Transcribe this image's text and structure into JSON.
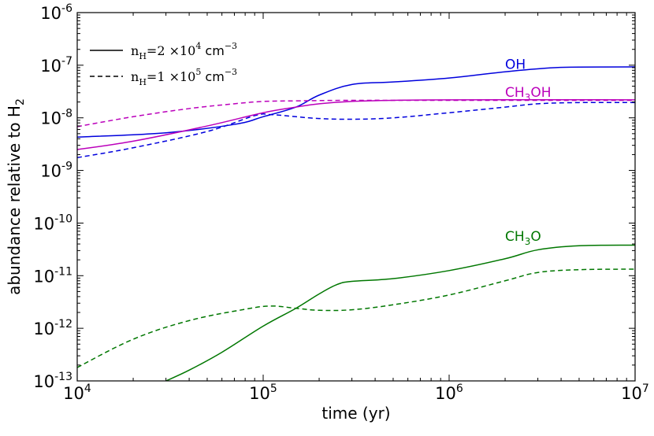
{
  "chart_data": {
    "type": "line",
    "xlabel": "time (yr)",
    "ylabel": "abundance relative to H",
    "ylabel_sub": "2",
    "x_scale": "log",
    "y_scale": "log",
    "xlim": [
      10000,
      10000000
    ],
    "ylim": [
      1e-13,
      1e-06
    ],
    "x_ticks": [
      {
        "value": 10000,
        "base": "10",
        "exp": "4"
      },
      {
        "value": 100000,
        "base": "10",
        "exp": "5"
      },
      {
        "value": 1000000,
        "base": "10",
        "exp": "6"
      },
      {
        "value": 10000000,
        "base": "10",
        "exp": "7"
      }
    ],
    "y_ticks": [
      {
        "value": 1e-13,
        "base": "10",
        "exp": "-13"
      },
      {
        "value": 1e-12,
        "base": "10",
        "exp": "-12"
      },
      {
        "value": 1e-11,
        "base": "10",
        "exp": "-11"
      },
      {
        "value": 1e-10,
        "base": "10",
        "exp": "-10"
      },
      {
        "value": 1e-09,
        "base": "10",
        "exp": "-9"
      },
      {
        "value": 1e-08,
        "base": "10",
        "exp": "-8"
      },
      {
        "value": 1e-07,
        "base": "10",
        "exp": "-7"
      },
      {
        "value": 1e-06,
        "base": "10",
        "exp": "-6"
      }
    ],
    "grid": false,
    "legend_position": "top-left",
    "legend": [
      {
        "style": "solid",
        "n": "n",
        "sub": "H",
        "eq": "=2 ×10",
        "exp": "4",
        "unit": "cm",
        "unit_exp": "−3"
      },
      {
        "style": "dashed",
        "n": "n",
        "sub": "H",
        "eq": "=1 ×10",
        "exp": "5",
        "unit": "cm",
        "unit_exp": "−3"
      }
    ],
    "species": [
      {
        "label": "OH",
        "label_parts": [
          {
            "t": "OH",
            "sub": false
          }
        ],
        "color": "#0000dd",
        "label_at": {
          "x": 2000000,
          "y": 8.5e-08
        }
      },
      {
        "label": "CH3OH",
        "label_parts": [
          {
            "t": "CH",
            "sub": false
          },
          {
            "t": "3",
            "sub": true
          },
          {
            "t": "OH",
            "sub": false
          }
        ],
        "color": "#bb00bb",
        "label_at": {
          "x": 2000000,
          "y": 2.5e-08
        }
      },
      {
        "label": "CH3O",
        "label_parts": [
          {
            "t": "CH",
            "sub": false
          },
          {
            "t": "3",
            "sub": true
          },
          {
            "t": "O",
            "sub": false
          }
        ],
        "color": "#007700",
        "label_at": {
          "x": 2000000,
          "y": 4.6e-11
        }
      }
    ],
    "series": [
      {
        "species": "OH",
        "style": "solid",
        "color": "#0000dd",
        "points": [
          [
            10000,
            4.3e-09
          ],
          [
            30000,
            5.2e-09
          ],
          [
            70000,
            7.5e-09
          ],
          [
            100000,
            1.05e-08
          ],
          [
            150000,
            1.6e-08
          ],
          [
            200000,
            2.7e-08
          ],
          [
            300000,
            4.3e-08
          ],
          [
            500000,
            4.8e-08
          ],
          [
            1000000,
            5.7e-08
          ],
          [
            2000000,
            7.5e-08
          ],
          [
            3500000,
            8.9e-08
          ],
          [
            5000000,
            9.2e-08
          ],
          [
            10000000,
            9.3e-08
          ]
        ]
      },
      {
        "species": "OH",
        "style": "dashed",
        "color": "#0000dd",
        "points": [
          [
            10000,
            1.75e-09
          ],
          [
            20000,
            2.7e-09
          ],
          [
            50000,
            5.5e-09
          ],
          [
            90000,
            1.1e-08
          ],
          [
            110000,
            1.15e-08
          ],
          [
            150000,
            1.05e-08
          ],
          [
            200000,
            9.7e-09
          ],
          [
            300000,
            9.4e-09
          ],
          [
            500000,
            1e-08
          ],
          [
            1000000,
            1.25e-08
          ],
          [
            2000000,
            1.6e-08
          ],
          [
            3000000,
            1.85e-08
          ],
          [
            5000000,
            1.95e-08
          ],
          [
            10000000,
            1.95e-08
          ]
        ]
      },
      {
        "species": "CH3OH",
        "style": "solid",
        "color": "#bb00bb",
        "points": [
          [
            10000,
            2.5e-09
          ],
          [
            20000,
            3.6e-09
          ],
          [
            50000,
            7e-09
          ],
          [
            100000,
            1.25e-08
          ],
          [
            150000,
            1.6e-08
          ],
          [
            200000,
            1.85e-08
          ],
          [
            300000,
            2.05e-08
          ],
          [
            500000,
            2.15e-08
          ],
          [
            1000000,
            2.2e-08
          ],
          [
            10000000,
            2.2e-08
          ]
        ]
      },
      {
        "species": "CH3OH",
        "style": "dashed",
        "color": "#bb00bb",
        "points": [
          [
            10000,
            6.8e-09
          ],
          [
            20000,
            1.05e-08
          ],
          [
            40000,
            1.5e-08
          ],
          [
            70000,
            1.85e-08
          ],
          [
            100000,
            2.05e-08
          ],
          [
            150000,
            2.1e-08
          ],
          [
            300000,
            2.15e-08
          ],
          [
            1000000,
            2.15e-08
          ],
          [
            10000000,
            2.15e-08
          ]
        ]
      },
      {
        "species": "CH3O",
        "style": "solid",
        "color": "#007700",
        "points": [
          [
            30000,
            1e-13
          ],
          [
            40000,
            1.6e-13
          ],
          [
            60000,
            3.5e-13
          ],
          [
            100000,
            1.1e-12
          ],
          [
            150000,
            2.4e-12
          ],
          [
            200000,
            4.5e-12
          ],
          [
            250000,
            6.8e-12
          ],
          [
            300000,
            7.8e-12
          ],
          [
            500000,
            8.8e-12
          ],
          [
            1000000,
            1.25e-11
          ],
          [
            2000000,
            2.1e-11
          ],
          [
            3000000,
            3.1e-11
          ],
          [
            5000000,
            3.7e-11
          ],
          [
            10000000,
            3.8e-11
          ]
        ]
      },
      {
        "species": "CH3O",
        "style": "dashed",
        "color": "#007700",
        "points": [
          [
            10000,
            1.8e-13
          ],
          [
            20000,
            6.2e-13
          ],
          [
            40000,
            1.4e-12
          ],
          [
            80000,
            2.3e-12
          ],
          [
            110000,
            2.65e-12
          ],
          [
            150000,
            2.4e-12
          ],
          [
            200000,
            2.2e-12
          ],
          [
            300000,
            2.25e-12
          ],
          [
            500000,
            2.8e-12
          ],
          [
            1000000,
            4.3e-12
          ],
          [
            2000000,
            8e-12
          ],
          [
            3000000,
            1.15e-11
          ],
          [
            5000000,
            1.3e-11
          ],
          [
            10000000,
            1.33e-11
          ]
        ]
      }
    ]
  }
}
